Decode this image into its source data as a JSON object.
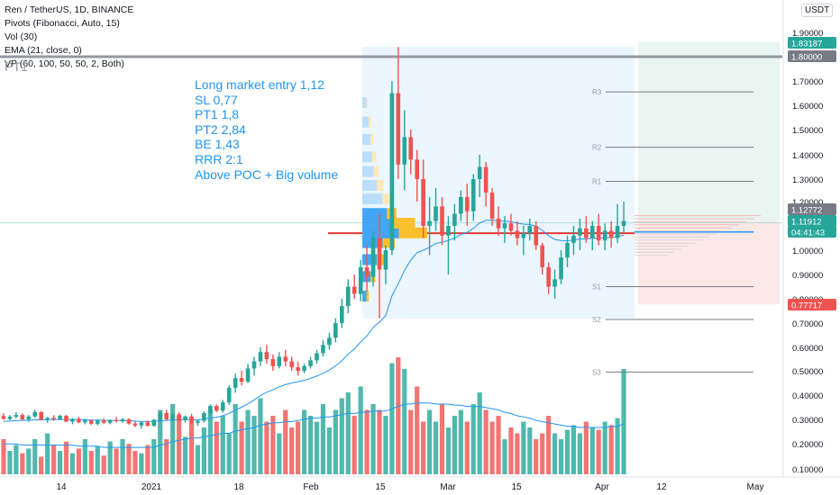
{
  "legend": {
    "symbol": "Ren / TetherUS, 1D, BINANCE",
    "pivots": "Pivots (Fibonacci, Auto, 15)",
    "vol": "Vol (30)",
    "ema": "EMA (21, close, 0)",
    "vp": "VP (60, 100, 50, 50, 2, Both)"
  },
  "pt1_label": "PT1",
  "currency": "USDT",
  "note": [
    "Long market entry 1,12",
    "SL 0,77",
    "PT1 1,8",
    "PT2 2,84",
    "BE 1,43",
    "RRR 2:1",
    "Above POC + Big volume"
  ],
  "colors": {
    "up": "#26a69a",
    "down": "#ef5350",
    "ema": "#2196f3",
    "profit_zone": "#e8f5f1",
    "loss_zone": "#fde8e8",
    "vp_range": "#e3f2fd",
    "poc": "#e53935"
  },
  "chart_data": {
    "type": "candlestick",
    "title": "Ren / TetherUS, 1D, BINANCE",
    "y_axis_ticks": [
      "1.90000",
      "1.80000",
      "1.70000",
      "1.60000",
      "1.50000",
      "1.40000",
      "1.30000",
      "1.20000",
      "1.00000",
      "0.90000",
      "0.80000",
      "0.70000",
      "0.60000",
      "0.50000",
      "0.40000",
      "0.30000",
      "0.20000",
      "0.10000"
    ],
    "x_axis_ticks": [
      "14",
      "2021",
      "18",
      "Feb",
      "15",
      "Mar",
      "15",
      "Apr",
      "12",
      "May"
    ],
    "price_labels": [
      {
        "value": "1.83187",
        "color": "#26a69a"
      },
      {
        "value": "1.80000",
        "color": "#787b86"
      },
      {
        "value": "1.12772",
        "color": "#787b86"
      },
      {
        "value": "1.11912",
        "color": "#26a69a"
      },
      {
        "value": "04:41:43",
        "color": "#26a69a"
      },
      {
        "value": "0.77717",
        "color": "#ef5350"
      }
    ],
    "pivot_levels": [
      {
        "name": "R3",
        "value": 1.655
      },
      {
        "name": "R2",
        "value": 1.43
      },
      {
        "name": "R1",
        "value": 1.29
      },
      {
        "name": "S1",
        "value": 0.85
      },
      {
        "name": "S2",
        "value": 0.715
      },
      {
        "name": "S3",
        "value": 0.495
      }
    ],
    "horizontal_lines": {
      "pt1": 1.8,
      "entry": 1.12,
      "stop": 0.777,
      "poc": 1.07
    },
    "ohlc": [
      [
        0.314,
        0.325,
        0.298,
        0.302
      ],
      [
        0.302,
        0.318,
        0.296,
        0.311
      ],
      [
        0.311,
        0.33,
        0.305,
        0.318
      ],
      [
        0.318,
        0.325,
        0.296,
        0.3
      ],
      [
        0.3,
        0.318,
        0.29,
        0.312
      ],
      [
        0.312,
        0.34,
        0.307,
        0.33
      ],
      [
        0.33,
        0.335,
        0.295,
        0.299
      ],
      [
        0.299,
        0.31,
        0.287,
        0.306
      ],
      [
        0.306,
        0.317,
        0.294,
        0.301
      ],
      [
        0.301,
        0.32,
        0.298,
        0.315
      ],
      [
        0.315,
        0.318,
        0.289,
        0.291
      ],
      [
        0.291,
        0.306,
        0.28,
        0.302
      ],
      [
        0.302,
        0.311,
        0.284,
        0.288
      ],
      [
        0.288,
        0.302,
        0.28,
        0.296
      ],
      [
        0.296,
        0.3,
        0.277,
        0.282
      ],
      [
        0.282,
        0.3,
        0.276,
        0.295
      ],
      [
        0.295,
        0.304,
        0.282,
        0.286
      ],
      [
        0.286,
        0.3,
        0.28,
        0.297
      ],
      [
        0.297,
        0.31,
        0.288,
        0.292
      ],
      [
        0.292,
        0.306,
        0.286,
        0.3
      ],
      [
        0.3,
        0.305,
        0.278,
        0.283
      ],
      [
        0.283,
        0.292,
        0.268,
        0.275
      ],
      [
        0.275,
        0.29,
        0.262,
        0.288
      ],
      [
        0.288,
        0.296,
        0.27,
        0.274
      ],
      [
        0.274,
        0.302,
        0.27,
        0.298
      ],
      [
        0.298,
        0.333,
        0.29,
        0.327
      ],
      [
        0.327,
        0.34,
        0.296,
        0.3
      ],
      [
        0.3,
        0.326,
        0.294,
        0.321
      ],
      [
        0.321,
        0.33,
        0.292,
        0.296
      ],
      [
        0.296,
        0.316,
        0.286,
        0.312
      ],
      [
        0.312,
        0.323,
        0.28,
        0.286
      ],
      [
        0.286,
        0.3,
        0.273,
        0.294
      ],
      [
        0.294,
        0.333,
        0.287,
        0.326
      ],
      [
        0.326,
        0.362,
        0.316,
        0.355
      ],
      [
        0.355,
        0.362,
        0.33,
        0.336
      ],
      [
        0.336,
        0.38,
        0.328,
        0.37
      ],
      [
        0.37,
        0.44,
        0.36,
        0.43
      ],
      [
        0.43,
        0.49,
        0.41,
        0.47
      ],
      [
        0.47,
        0.5,
        0.44,
        0.455
      ],
      [
        0.455,
        0.53,
        0.45,
        0.51
      ],
      [
        0.51,
        0.56,
        0.48,
        0.54
      ],
      [
        0.54,
        0.6,
        0.52,
        0.58
      ],
      [
        0.58,
        0.61,
        0.53,
        0.55
      ],
      [
        0.55,
        0.57,
        0.5,
        0.52
      ],
      [
        0.52,
        0.58,
        0.51,
        0.56
      ],
      [
        0.56,
        0.59,
        0.52,
        0.54
      ],
      [
        0.54,
        0.56,
        0.5,
        0.515
      ],
      [
        0.515,
        0.54,
        0.48,
        0.5
      ],
      [
        0.5,
        0.53,
        0.49,
        0.52
      ],
      [
        0.52,
        0.56,
        0.51,
        0.545
      ],
      [
        0.545,
        0.59,
        0.53,
        0.575
      ],
      [
        0.575,
        0.63,
        0.56,
        0.61
      ],
      [
        0.61,
        0.66,
        0.59,
        0.64
      ],
      [
        0.64,
        0.72,
        0.62,
        0.7
      ],
      [
        0.7,
        0.8,
        0.68,
        0.77
      ],
      [
        0.77,
        0.88,
        0.74,
        0.85
      ],
      [
        0.85,
        0.9,
        0.8,
        0.82
      ],
      [
        0.82,
        0.96,
        0.79,
        0.93
      ],
      [
        0.93,
        1.02,
        0.83,
        0.89
      ],
      [
        0.89,
        1.08,
        0.85,
        1.05
      ],
      [
        1.05,
        1.15,
        0.72,
        0.92
      ],
      [
        0.92,
        1.02,
        0.86,
        1.0
      ],
      [
        1.0,
        1.7,
        0.98,
        1.65
      ],
      [
        1.65,
        1.84,
        1.3,
        1.36
      ],
      [
        1.36,
        1.58,
        1.25,
        1.47
      ],
      [
        1.47,
        1.5,
        1.32,
        1.38
      ],
      [
        1.38,
        1.42,
        1.2,
        1.3
      ],
      [
        1.3,
        1.38,
        1.05,
        1.1
      ],
      [
        1.1,
        1.22,
        0.98,
        1.12
      ],
      [
        1.12,
        1.26,
        1.08,
        1.18
      ],
      [
        1.18,
        1.22,
        1.02,
        1.06
      ],
      [
        1.06,
        1.14,
        0.9,
        1.1
      ],
      [
        1.1,
        1.19,
        1.04,
        1.15
      ],
      [
        1.15,
        1.25,
        1.12,
        1.22
      ],
      [
        1.22,
        1.28,
        1.1,
        1.16
      ],
      [
        1.16,
        1.32,
        1.12,
        1.3
      ],
      [
        1.3,
        1.4,
        1.22,
        1.35
      ],
      [
        1.35,
        1.37,
        1.18,
        1.24
      ],
      [
        1.24,
        1.26,
        1.1,
        1.13
      ],
      [
        1.13,
        1.18,
        1.06,
        1.09
      ],
      [
        1.09,
        1.14,
        1.03,
        1.11
      ],
      [
        1.11,
        1.15,
        1.06,
        1.08
      ],
      [
        1.08,
        1.12,
        1.02,
        1.05
      ],
      [
        1.05,
        1.1,
        0.98,
        1.07
      ],
      [
        1.07,
        1.13,
        1.04,
        1.1
      ],
      [
        1.1,
        1.12,
        1.0,
        1.02
      ],
      [
        1.02,
        1.03,
        0.9,
        0.93
      ],
      [
        0.93,
        0.95,
        0.82,
        0.85
      ],
      [
        0.85,
        0.92,
        0.8,
        0.88
      ],
      [
        0.88,
        1.0,
        0.86,
        0.97
      ],
      [
        0.97,
        1.06,
        0.93,
        1.03
      ],
      [
        1.03,
        1.1,
        0.98,
        1.06
      ],
      [
        1.06,
        1.13,
        1.0,
        1.09
      ],
      [
        1.09,
        1.14,
        1.03,
        1.05
      ],
      [
        1.05,
        1.12,
        1.0,
        1.1
      ],
      [
        1.1,
        1.15,
        1.02,
        1.04
      ],
      [
        1.04,
        1.11,
        1.0,
        1.08
      ],
      [
        1.08,
        1.12,
        1.01,
        1.05
      ],
      [
        1.05,
        1.19,
        1.03,
        1.1
      ],
      [
        1.1,
        1.2,
        1.07,
        1.12
      ]
    ],
    "ema": [
      0.292,
      0.293,
      0.295,
      0.296,
      0.296,
      0.298,
      0.298,
      0.299,
      0.299,
      0.3,
      0.299,
      0.3,
      0.299,
      0.298,
      0.297,
      0.297,
      0.296,
      0.296,
      0.296,
      0.296,
      0.295,
      0.293,
      0.292,
      0.291,
      0.292,
      0.295,
      0.295,
      0.298,
      0.298,
      0.3,
      0.298,
      0.298,
      0.301,
      0.306,
      0.309,
      0.315,
      0.325,
      0.339,
      0.35,
      0.364,
      0.38,
      0.398,
      0.412,
      0.422,
      0.434,
      0.443,
      0.45,
      0.455,
      0.461,
      0.469,
      0.478,
      0.49,
      0.503,
      0.521,
      0.543,
      0.571,
      0.593,
      0.623,
      0.647,
      0.683,
      0.704,
      0.73,
      0.813,
      0.862,
      0.917,
      0.959,
      0.99,
      1.0,
      1.012,
      1.028,
      1.032,
      1.04,
      1.05,
      1.065,
      1.073,
      1.09,
      1.112,
      1.123,
      1.124,
      1.121,
      1.12,
      1.117,
      1.111,
      1.107,
      1.106,
      1.098,
      1.082,
      1.06,
      1.044,
      1.04,
      1.039,
      1.041,
      1.046,
      1.046,
      1.05,
      1.049,
      1.052,
      1.052,
      1.056,
      1.062
    ],
    "volume": [
      0.3,
      0.2,
      0.25,
      0.18,
      0.22,
      0.3,
      0.15,
      0.35,
      0.25,
      0.2,
      0.28,
      0.18,
      0.22,
      0.3,
      0.2,
      0.24,
      0.16,
      0.28,
      0.22,
      0.3,
      0.26,
      0.2,
      0.18,
      0.25,
      0.3,
      0.55,
      0.3,
      0.6,
      0.5,
      0.32,
      0.45,
      0.25,
      0.4,
      0.55,
      0.45,
      0.5,
      0.35,
      0.6,
      0.45,
      0.55,
      0.5,
      0.65,
      0.45,
      0.5,
      0.35,
      0.55,
      0.4,
      0.45,
      0.55,
      0.5,
      0.45,
      0.6,
      0.4,
      0.55,
      0.65,
      0.7,
      0.5,
      0.75,
      0.55,
      0.6,
      0.55,
      0.5,
      0.95,
      1.0,
      0.9,
      0.55,
      0.75,
      0.45,
      0.55,
      0.45,
      0.6,
      0.4,
      0.5,
      0.55,
      0.45,
      0.6,
      0.7,
      0.55,
      0.45,
      0.5,
      0.3,
      0.4,
      0.35,
      0.45,
      0.4,
      0.3,
      0.35,
      0.5,
      0.35,
      0.3,
      0.38,
      0.42,
      0.35,
      0.45,
      0.4,
      0.38,
      0.45,
      0.42,
      0.48,
      0.9
    ],
    "volume_ma": [
      0.26,
      0.26,
      0.26,
      0.25,
      0.25,
      0.25,
      0.25,
      0.25,
      0.25,
      0.25,
      0.25,
      0.25,
      0.24,
      0.24,
      0.24,
      0.24,
      0.23,
      0.23,
      0.23,
      0.23,
      0.23,
      0.23,
      0.23,
      0.23,
      0.23,
      0.25,
      0.26,
      0.28,
      0.29,
      0.3,
      0.31,
      0.31,
      0.32,
      0.33,
      0.34,
      0.35,
      0.35,
      0.37,
      0.38,
      0.39,
      0.4,
      0.42,
      0.43,
      0.44,
      0.44,
      0.45,
      0.45,
      0.46,
      0.47,
      0.48,
      0.48,
      0.49,
      0.49,
      0.5,
      0.51,
      0.52,
      0.52,
      0.53,
      0.53,
      0.54,
      0.54,
      0.54,
      0.56,
      0.58,
      0.6,
      0.6,
      0.61,
      0.61,
      0.61,
      0.6,
      0.6,
      0.6,
      0.59,
      0.59,
      0.58,
      0.58,
      0.58,
      0.57,
      0.56,
      0.55,
      0.53,
      0.52,
      0.5,
      0.49,
      0.48,
      0.46,
      0.45,
      0.44,
      0.43,
      0.42,
      0.41,
      0.41,
      0.4,
      0.4,
      0.4,
      0.4,
      0.4,
      0.41,
      0.41,
      0.43
    ],
    "volume_profile": [
      {
        "price": 1.02,
        "up": 0.25,
        "down": 0.15
      },
      {
        "price": 1.06,
        "up": 0.45,
        "down": 0.35
      },
      {
        "price": 1.1,
        "up": 0.35,
        "down": 0.3
      },
      {
        "price": 1.14,
        "up": 0.3,
        "down": 0.12
      },
      {
        "price": 1.2,
        "up": 0.25,
        "down": 0.1
      },
      {
        "price": 1.26,
        "up": 0.18,
        "down": 0.08
      },
      {
        "price": 1.32,
        "up": 0.14,
        "down": 0.06
      },
      {
        "price": 1.38,
        "up": 0.12,
        "down": 0.05
      },
      {
        "price": 1.45,
        "up": 0.1,
        "down": 0.04
      },
      {
        "price": 1.52,
        "up": 0.08,
        "down": 0.03
      },
      {
        "price": 1.6,
        "up": 0.05,
        "down": 0.02
      },
      {
        "price": 0.95,
        "up": 0.18,
        "down": 0.12
      },
      {
        "price": 0.88,
        "up": 0.1,
        "down": 0.06
      },
      {
        "price": 0.8,
        "up": 0.05,
        "down": 0.03
      }
    ]
  }
}
